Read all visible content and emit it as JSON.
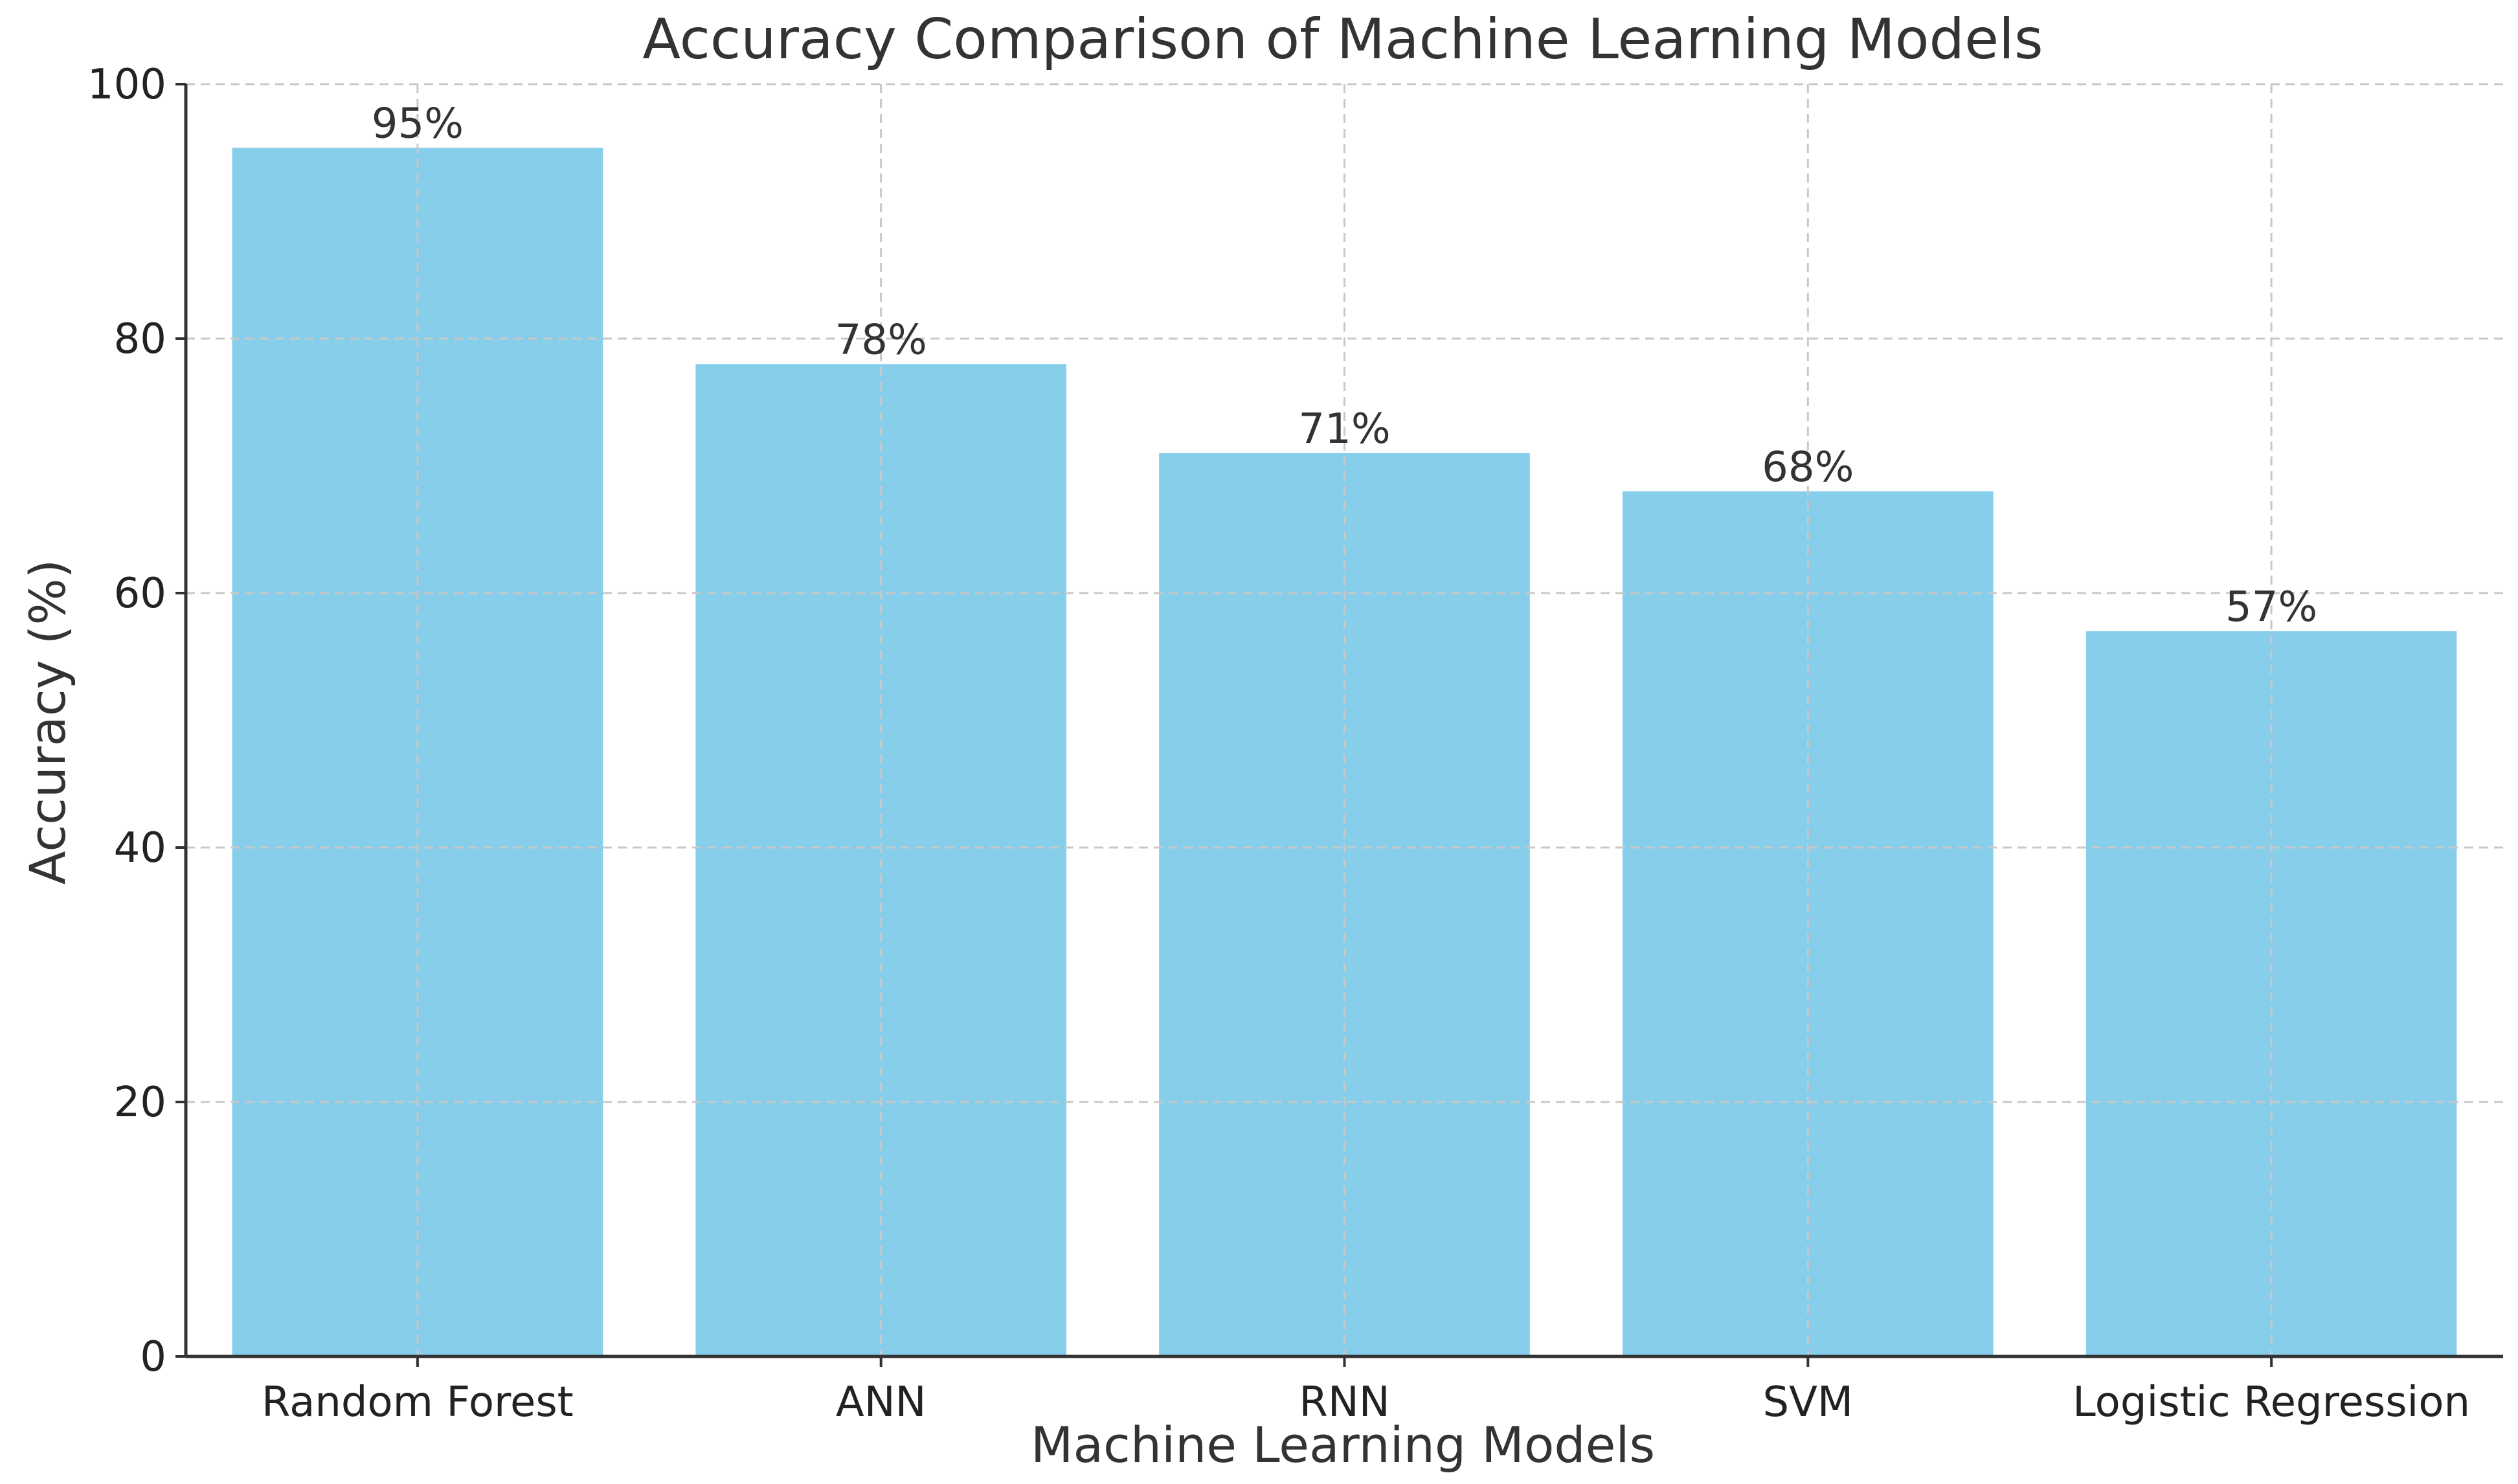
{
  "chart_data": {
    "type": "bar",
    "title": "Accuracy Comparison of Machine Learning Models",
    "xlabel": "Machine Learning Models",
    "ylabel": "Accuracy (%)",
    "categories": [
      "Random Forest",
      "ANN",
      "RNN",
      "SVM",
      "Logistic Regression"
    ],
    "values": [
      95,
      78,
      71,
      68,
      57
    ],
    "data_labels": [
      "95%",
      "78%",
      "71%",
      "68%",
      "57%"
    ],
    "ylim": [
      0,
      100
    ],
    "yticks": [
      0,
      20,
      40,
      60,
      80,
      100
    ],
    "ytick_labels": [
      "0",
      "20",
      "40",
      "60",
      "80",
      "100"
    ],
    "grid": true,
    "bar_color": "#87CEEB"
  }
}
